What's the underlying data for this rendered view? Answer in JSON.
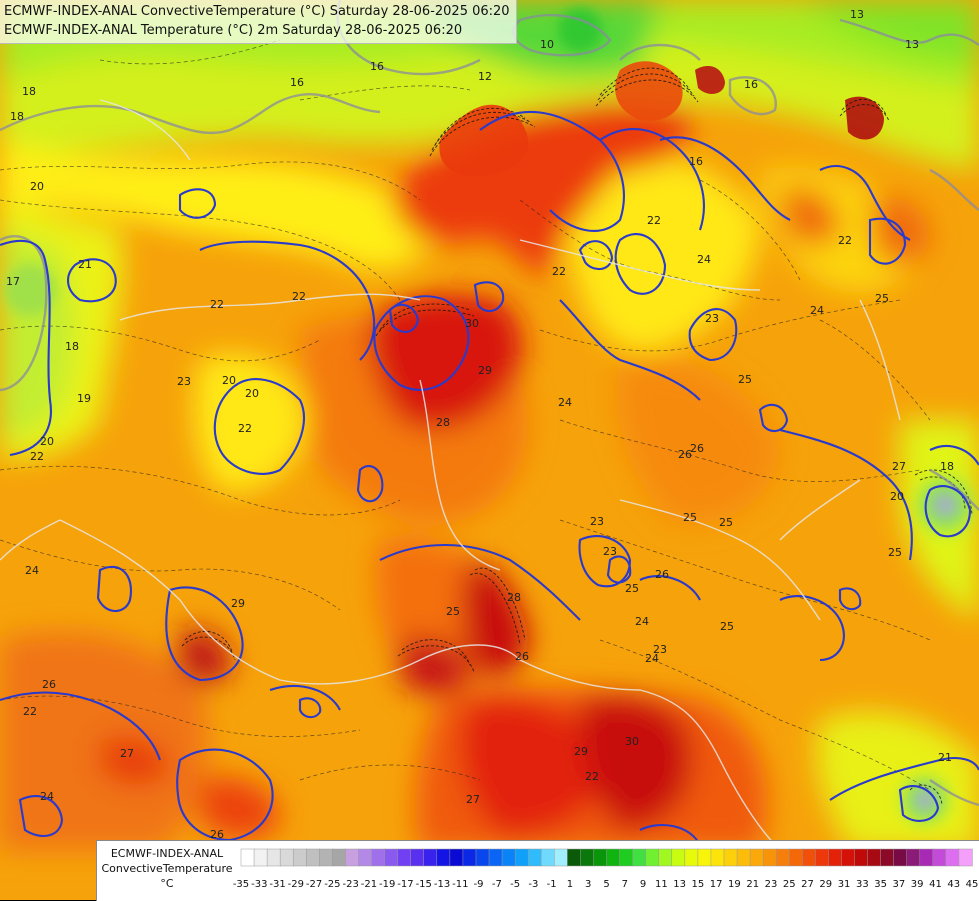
{
  "header": {
    "line1": "ECMWF-INDEX-ANAL ConvectiveTemperature (°C) Saturday 28-06-2025 06:20",
    "line2": "ECMWF-INDEX-ANAL Temperature (°C) 2m Saturday 28-06-2025 06:20"
  },
  "legend": {
    "title_line1": "ECMWF-INDEX-ANAL",
    "title_line2": "ConvectiveTemperature",
    "title_line3": "°C",
    "ticks": [
      "-35",
      "-33",
      "-31",
      "-29",
      "-27",
      "-25",
      "-23",
      "-21",
      "-19",
      "-17",
      "-15",
      "-13",
      "-11",
      "-9",
      "-7",
      "-5",
      "-3",
      "-1",
      "1",
      "3",
      "5",
      "7",
      "9",
      "11",
      "13",
      "15",
      "17",
      "19",
      "21",
      "23",
      "25",
      "27",
      "29",
      "31",
      "33",
      "35",
      "37",
      "39",
      "41",
      "43",
      "45"
    ],
    "colors": [
      "#ffffff",
      "#f2f2f2",
      "#e6e6e6",
      "#d9d9d9",
      "#cccccc",
      "#c0c0c0",
      "#b3b3b3",
      "#a6a6a6",
      "#c8a0e0",
      "#b488e6",
      "#9f70ea",
      "#8a5af0",
      "#7040f2",
      "#5a30f0",
      "#3a22ee",
      "#1414e6",
      "#0a0ad2",
      "#0a28e6",
      "#0a46ee",
      "#0a64f4",
      "#0a82f8",
      "#10a0fa",
      "#30bcfc",
      "#70dafe",
      "#a0eefe",
      "#0a5a0a",
      "#0a780a",
      "#0a960a",
      "#10b410",
      "#20cc20",
      "#40e040",
      "#70f030",
      "#a0f820",
      "#c8fc10",
      "#e6fa0a",
      "#f8f40a",
      "#fce40a",
      "#fcd00a",
      "#fcbc0a",
      "#faa80a",
      "#f8940a",
      "#f67e0a",
      "#f4680a",
      "#f0500a",
      "#ec380a",
      "#e4220a",
      "#d4120a",
      "#c00a0a",
      "#a80a14",
      "#8c0a28",
      "#780a46",
      "#8c1a78",
      "#a82ab4",
      "#c44ad8",
      "#de6ef0",
      "#f4a0fa"
    ]
  },
  "contour_labels": [
    "18",
    "18",
    "16",
    "16",
    "13",
    "13",
    "10",
    "12",
    "16",
    "16",
    "20",
    "21",
    "22",
    "22",
    "20",
    "17",
    "18",
    "19",
    "20",
    "22",
    "23",
    "23",
    "24",
    "25",
    "22",
    "30",
    "29",
    "28",
    "24",
    "26",
    "22",
    "22",
    "24",
    "23",
    "25",
    "25",
    "26",
    "25",
    "23",
    "24",
    "26",
    "24",
    "22",
    "25",
    "25",
    "23",
    "27",
    "26",
    "27",
    "26",
    "26",
    "25",
    "28",
    "29",
    "30",
    "22",
    "24",
    "29",
    "25",
    "27",
    "20",
    "22",
    "24",
    "21",
    "18",
    "18",
    "20"
  ]
}
